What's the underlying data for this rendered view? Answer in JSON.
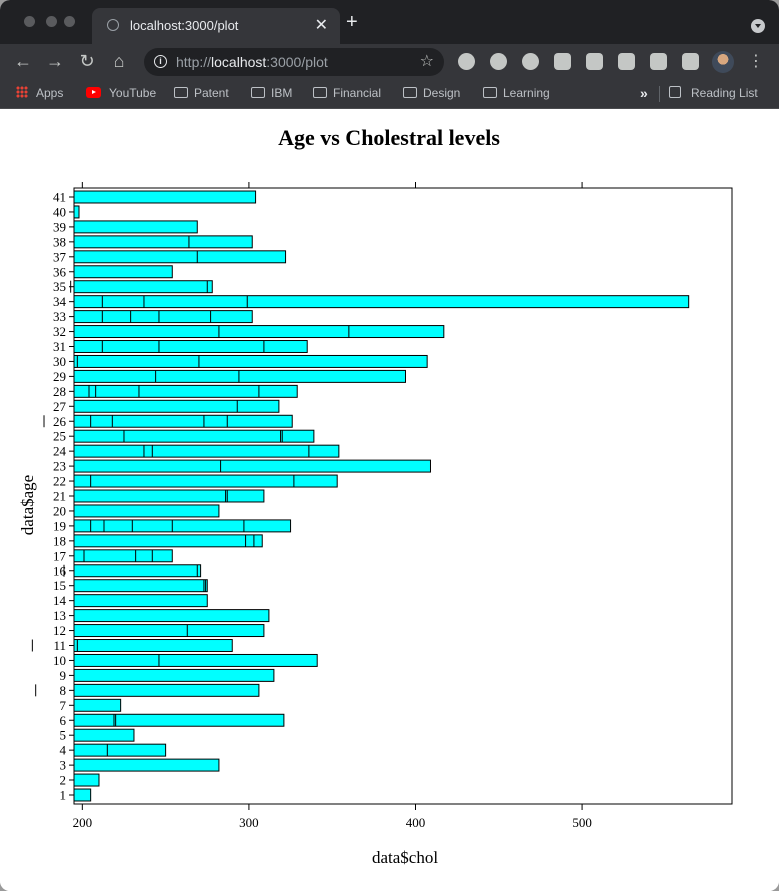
{
  "browser": {
    "tab_title": "localhost:3000/plot",
    "url_scheme": "http://",
    "url_host": "localhost",
    "url_rest": ":3000/plot",
    "bookmarks": [
      "Apps",
      "YouTube",
      "Patent",
      "IBM",
      "Financial",
      "Design",
      "Learning"
    ],
    "reading_list": "Reading List",
    "icons": {
      "back": "back-arrow-icon",
      "forward": "forward-arrow-icon",
      "reload": "reload-icon",
      "home": "home-icon",
      "site_info": "info-icon",
      "bookmark_star": "star-icon",
      "extensions": "puzzle-icon",
      "menu": "kebab-menu-icon"
    },
    "colors": {
      "tabstrip": "#202124",
      "toolbar": "#35363a",
      "text": "#e8eaed"
    }
  },
  "chart_data": {
    "type": "bar",
    "orientation": "horizontal",
    "stacked_segments": true,
    "title": "Age vs Cholestral levels",
    "xlabel": "data$chol",
    "ylabel": "data$age",
    "xlim": [
      195,
      590
    ],
    "x_ticks": [
      200,
      300,
      400,
      500
    ],
    "bar_color": "#00ffff",
    "edge_color": "#000000",
    "categories": [
      "1",
      "2",
      "3",
      "4",
      "5",
      "6",
      "7",
      "8",
      "9",
      "10",
      "11",
      "12",
      "13",
      "14",
      "15",
      "16",
      "17",
      "18",
      "19",
      "20",
      "21",
      "22",
      "23",
      "24",
      "25",
      "26",
      "27",
      "28",
      "29",
      "30",
      "31",
      "32",
      "33",
      "34",
      "35",
      "36",
      "37",
      "38",
      "39",
      "40",
      "41"
    ],
    "values": [
      205,
      210,
      282,
      250,
      231,
      321,
      223,
      306,
      315,
      341,
      290,
      309,
      312,
      275,
      275,
      271,
      254,
      308,
      325,
      282,
      309,
      353,
      409,
      354,
      339,
      326,
      318,
      329,
      394,
      407,
      335,
      417,
      302,
      564,
      278,
      254,
      322,
      302,
      269,
      198,
      304
    ],
    "segment_boundaries": [
      [],
      [],
      [],
      [
        215
      ],
      [],
      [
        219,
        220
      ],
      [],
      [
        172
      ],
      [],
      [
        246
      ],
      [
        170,
        197
      ],
      [
        263
      ],
      [],
      [],
      [
        273,
        274
      ],
      [
        149,
        189,
        269
      ],
      [
        201,
        232,
        242
      ],
      [
        298,
        303
      ],
      [
        205,
        213,
        230,
        254,
        297
      ],
      [],
      [
        286,
        287
      ],
      [
        205,
        327
      ],
      [
        283
      ],
      [
        237,
        242,
        336
      ],
      [
        225,
        319,
        320
      ],
      [
        177,
        205,
        218,
        273,
        287
      ],
      [
        293
      ],
      [
        204,
        208,
        234,
        306
      ],
      [
        244,
        294
      ],
      [
        197,
        270
      ],
      [
        212,
        246,
        309
      ],
      [
        282,
        360
      ],
      [
        212,
        229,
        246,
        277
      ],
      [
        212,
        237,
        299
      ],
      [
        193,
        275
      ],
      [],
      [
        269
      ],
      [
        149,
        264
      ],
      [],
      [],
      []
    ]
  }
}
